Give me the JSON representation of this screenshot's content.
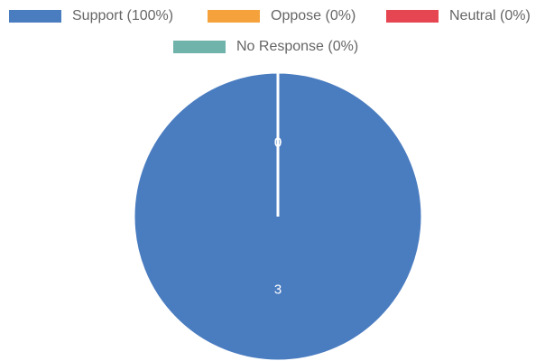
{
  "chart_data": {
    "type": "pie",
    "categories": [
      "Support (100%)",
      "Oppose (0%)",
      "Neutral (0%)",
      "No Response (0%)"
    ],
    "values": [
      3,
      0,
      0,
      0
    ],
    "colors": [
      "#4a7cc0",
      "#f5a23c",
      "#e64552",
      "#6fb3ab"
    ]
  }
}
